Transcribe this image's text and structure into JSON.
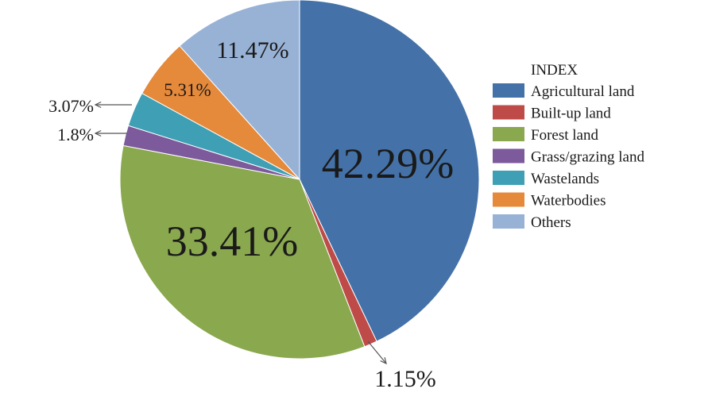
{
  "chart_data": {
    "type": "pie",
    "legend_title": "INDEX",
    "legend_position": "right",
    "slices": [
      {
        "name": "Agricultural land",
        "value": 42.29,
        "label": "42.29%",
        "color": "#4472a8"
      },
      {
        "name": "Built-up land",
        "value": 1.15,
        "label": "1.15%",
        "color": "#be4b48"
      },
      {
        "name": "Forest land",
        "value": 33.41,
        "label": "33.41%",
        "color": "#8aa84e"
      },
      {
        "name": "Grass/grazing land",
        "value": 1.8,
        "label": "1.8%",
        "color": "#7c5a9b"
      },
      {
        "name": "Wastelands",
        "value": 3.07,
        "label": "3.07%",
        "color": "#3f9fb4"
      },
      {
        "name": "Waterbodies",
        "value": 5.31,
        "label": "5.31%",
        "color": "#e5893b"
      },
      {
        "name": "Others",
        "value": 11.47,
        "label": "11.47%",
        "color": "#98b2d6"
      }
    ]
  }
}
